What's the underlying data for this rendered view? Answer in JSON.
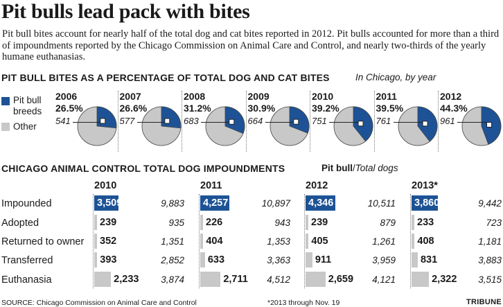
{
  "headline": "Pit bulls lead pack with bites",
  "intro": "Pit bull bites account for nearly half of the total dog and cat bites reported in 2012. Pit bulls accounted for more than a third of impoundments reported by the Chicago Commission on Animal Care and Control, and nearly two-thirds of the yearly humane euthanasias.",
  "colors": {
    "pit_bull": "#1d5396",
    "other": "#c8c8c8",
    "text": "#1a1a1a"
  },
  "chart_data": [
    {
      "type": "pie",
      "title": "PIT BULL BITES AS A PERCENTAGE OF TOTAL DOG AND CAT BITES",
      "subtitle": "In Chicago, by year",
      "legend": [
        "Pit bull breeds",
        "Other"
      ],
      "legend_placement": "left",
      "years": [
        "2006",
        "2007",
        "2008",
        "2009",
        "2010",
        "2011",
        "2012"
      ],
      "pct_labels": [
        "26.5%",
        "26.6%",
        "31.2%",
        "30.9%",
        "39.2%",
        "39.5%",
        "44.3%"
      ],
      "pit_bull_share": [
        26.5,
        26.6,
        31.2,
        30.9,
        39.2,
        39.5,
        44.3
      ],
      "pit_bull_bites": [
        541,
        577,
        683,
        664,
        751,
        761,
        961
      ]
    },
    {
      "type": "table",
      "title": "CHICAGO ANIMAL CONTROL TOTAL DOG IMPOUNDMENTS",
      "legend_pit": "Pit bull",
      "legend_sep": "/",
      "legend_total": "Total dogs",
      "years": [
        "2010",
        "2011",
        "2012",
        "2013*"
      ],
      "rows": [
        {
          "label": "Impounded",
          "pit": [
            "3,509",
            "4,257",
            "4,346",
            "3,860"
          ],
          "total": [
            "9,883",
            "10,897",
            "10,511",
            "9,442"
          ]
        },
        {
          "label": "Adopted",
          "pit": [
            "239",
            "226",
            "239",
            "233"
          ],
          "total": [
            "935",
            "943",
            "879",
            "723"
          ]
        },
        {
          "label": "Returned to owner",
          "pit": [
            "352",
            "404",
            "405",
            "408"
          ],
          "total": [
            "1,351",
            "1,353",
            "1,261",
            "1,181"
          ]
        },
        {
          "label": "Transferred",
          "pit": [
            "393",
            "633",
            "911",
            "831"
          ],
          "total": [
            "2,852",
            "3,363",
            "3,959",
            "3,883"
          ]
        },
        {
          "label": "Euthanasia",
          "pit": [
            "2,233",
            "2,711",
            "2,659",
            "2,322"
          ],
          "total": [
            "3,874",
            "4,512",
            "4,121",
            "3,515"
          ]
        }
      ]
    }
  ],
  "source": "SOURCE: Chicago Commission on Animal Care and Control",
  "footnote": "*2013 through Nov. 19",
  "credit": "TRIBUNE"
}
